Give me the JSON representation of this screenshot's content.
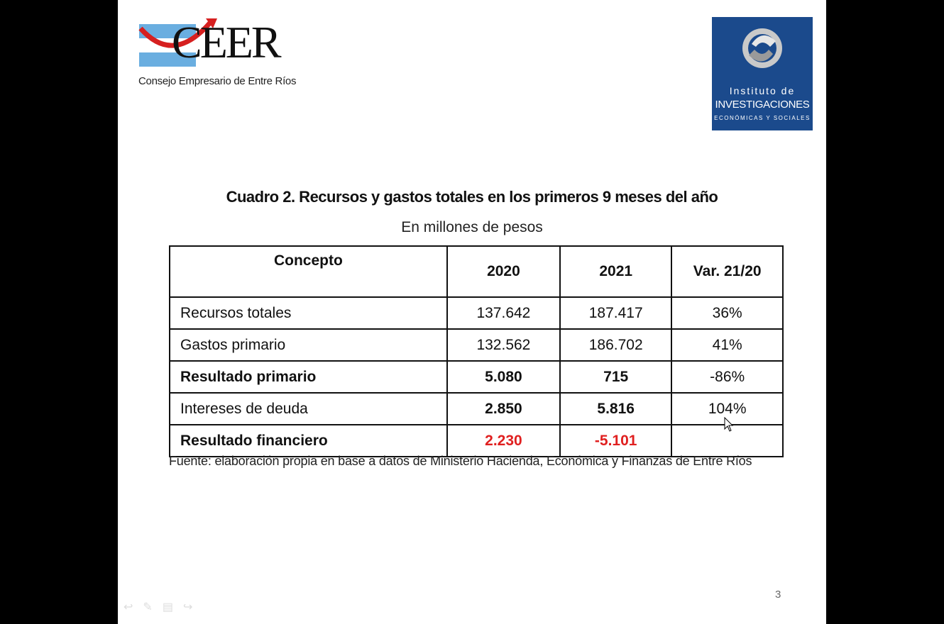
{
  "logos": {
    "ceer": {
      "name": "CEER",
      "subtitle": "Consejo Empresario de Entre Ríos",
      "colors": {
        "flag_blue": "#6aaee0",
        "arc": "#d62020"
      }
    },
    "iies": {
      "line1": "Instituto de",
      "line2": "INVESTIGACIONES",
      "line3": "Económicas y sociales",
      "background": "#1b4a8c"
    }
  },
  "title": "Cuadro 2. Recursos y gastos totales en los primeros 9 meses del año",
  "subtitle": "En millones de pesos",
  "table": {
    "headers": [
      "Concepto",
      "2020",
      "2021",
      "Var. 21/20"
    ],
    "rows": [
      [
        "Recursos totales",
        "137.642",
        "187.417",
        "36%"
      ],
      [
        "Gastos primario",
        "132.562",
        "186.702",
        "41%"
      ],
      [
        "Resultado primario",
        "5.080",
        "715",
        "-86%"
      ],
      [
        "Intereses de deuda",
        "2.850",
        "5.816",
        "104%"
      ],
      [
        "Resultado financiero",
        "2.230",
        "-5.101",
        ""
      ]
    ],
    "highlight_color": "#e02020"
  },
  "source": "Fuente: elaboración propia en base a datos de Ministerio Hacienda, Económica y Finanzas de Entre Ríos",
  "page_number": "3",
  "toolbar": {
    "icons": [
      "previous-arrow-icon",
      "pen-icon",
      "menu-icon",
      "next-arrow-icon"
    ]
  }
}
